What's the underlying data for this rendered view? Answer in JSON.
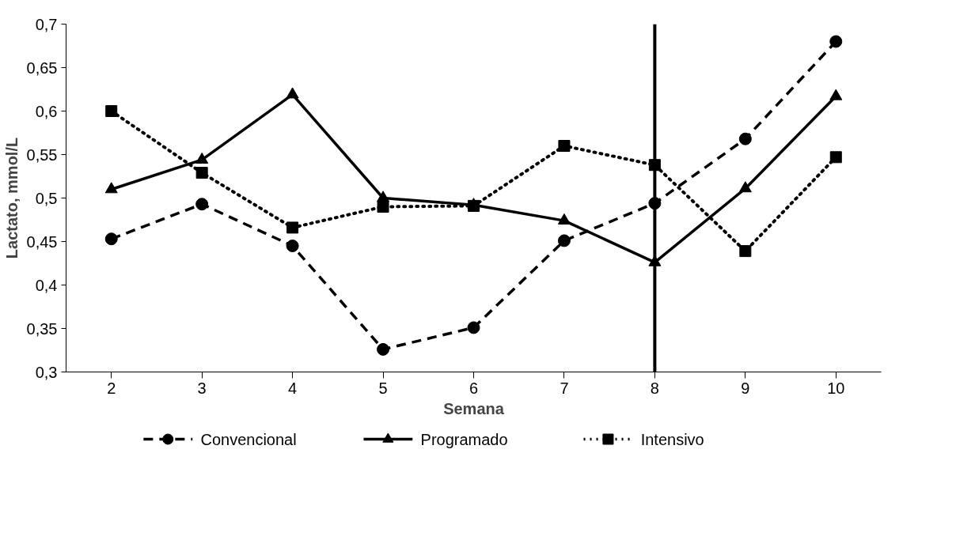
{
  "chart_data": {
    "type": "line",
    "xlabel": "Semana",
    "ylabel": "Lactato, mmol/L",
    "x": [
      2,
      3,
      4,
      5,
      6,
      7,
      8,
      9,
      10
    ],
    "xlim": [
      1.5,
      10.5
    ],
    "xticks": [
      2,
      3,
      4,
      5,
      6,
      7,
      8,
      9,
      10
    ],
    "ylim": [
      0.3,
      0.7
    ],
    "yticks": [
      {
        "value": 0.3,
        "label": "0,3"
      },
      {
        "value": 0.35,
        "label": "0,35"
      },
      {
        "value": 0.4,
        "label": "0,4"
      },
      {
        "value": 0.45,
        "label": "0,45"
      },
      {
        "value": 0.5,
        "label": "0,5"
      },
      {
        "value": 0.55,
        "label": "0,55"
      },
      {
        "value": 0.6,
        "label": "0,6"
      },
      {
        "value": 0.65,
        "label": "0,65"
      },
      {
        "value": 0.7,
        "label": "0,7"
      }
    ],
    "series": [
      {
        "name": "Convencional",
        "color": "#000000",
        "marker": "circle",
        "line_style": "dashed",
        "values": [
          0.453,
          0.493,
          0.445,
          0.326,
          0.351,
          0.451,
          0.494,
          0.568,
          0.68
        ]
      },
      {
        "name": "Programado",
        "color": "#000000",
        "marker": "triangle",
        "line_style": "solid",
        "values": [
          0.51,
          0.544,
          0.619,
          0.5,
          0.492,
          0.474,
          0.426,
          0.511,
          0.617
        ]
      },
      {
        "name": "Intensivo",
        "color": "#000000",
        "marker": "square",
        "line_style": "dotted",
        "values": [
          0.6,
          0.529,
          0.466,
          0.49,
          0.491,
          0.56,
          0.538,
          0.439,
          0.547
        ]
      }
    ],
    "ref_lines": [
      {
        "axis": "x",
        "value": 8,
        "color": "#000000"
      }
    ],
    "grid": false,
    "legend": "bottom"
  }
}
